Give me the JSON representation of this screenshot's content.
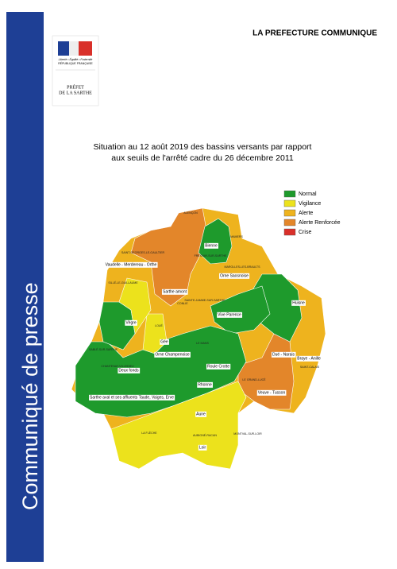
{
  "header": {
    "logo": {
      "motto": "Liberté • Égalité • Fraternité",
      "republic": "RÉPUBLIQUE FRANÇAISE",
      "prefect": [
        "PRÉFET",
        "DE LA SARTHE"
      ]
    },
    "title": "LA PREFECTURE COMMUNIQUE"
  },
  "sidebar": "Communiqué de presse",
  "document": {
    "title_lines": [
      "Situation au 12 août 2019 des bassins versants par rapport",
      "aux seuils de l'arrêté cadre du 26 décembre 2011"
    ]
  },
  "legend": [
    {
      "label": "Normal",
      "color": "#1e9a2c"
    },
    {
      "label": "Vigilance",
      "color": "#ece21c"
    },
    {
      "label": "Alerte",
      "color": "#eeb31e"
    },
    {
      "label": "Alerte Renforcée",
      "color": "#e3862a"
    },
    {
      "label": "Crise",
      "color": "#d9302a"
    }
  ],
  "map": {
    "basins": [
      "Bienne",
      "Vaudelle - Merdereau - Orthe",
      "Orne Saosnoise",
      "Sarthe amont",
      "Huisne",
      "Vive Parence",
      "Vègre",
      "Gée",
      "Orne Champenoise",
      "Roule Crotte",
      "Deux fonds",
      "Rhonne",
      "Dué - Narais",
      "Braye - Anille",
      "Veuve - Tusson",
      "Sarthe aval et ses affluents Taude, Vaiges, Erve",
      "Aune",
      "Loir"
    ],
    "towns": [
      "ALENÇON",
      "SAINT-GEORGES-LE-GAULTIER",
      "FRESNAY-SUR-SARTHE",
      "MAMERS",
      "MAROLLES-LES-BRAULTS",
      "SILLÉ-LE-GUILLAUME",
      "CONLIE",
      "SAINTE-JAMME-SUR-SARTHE",
      "LOUÉ",
      "SABLÉ-SUR-SARTHE",
      "CHANTENAY-VILLEDIEU",
      "LE MANS",
      "SAINT-CALAIS",
      "LE GRAND-LUCÉ",
      "LA FLÈCHE",
      "AUBIGNÉ-RACAN",
      "MONTVAL-SUR-LOIR"
    ]
  }
}
